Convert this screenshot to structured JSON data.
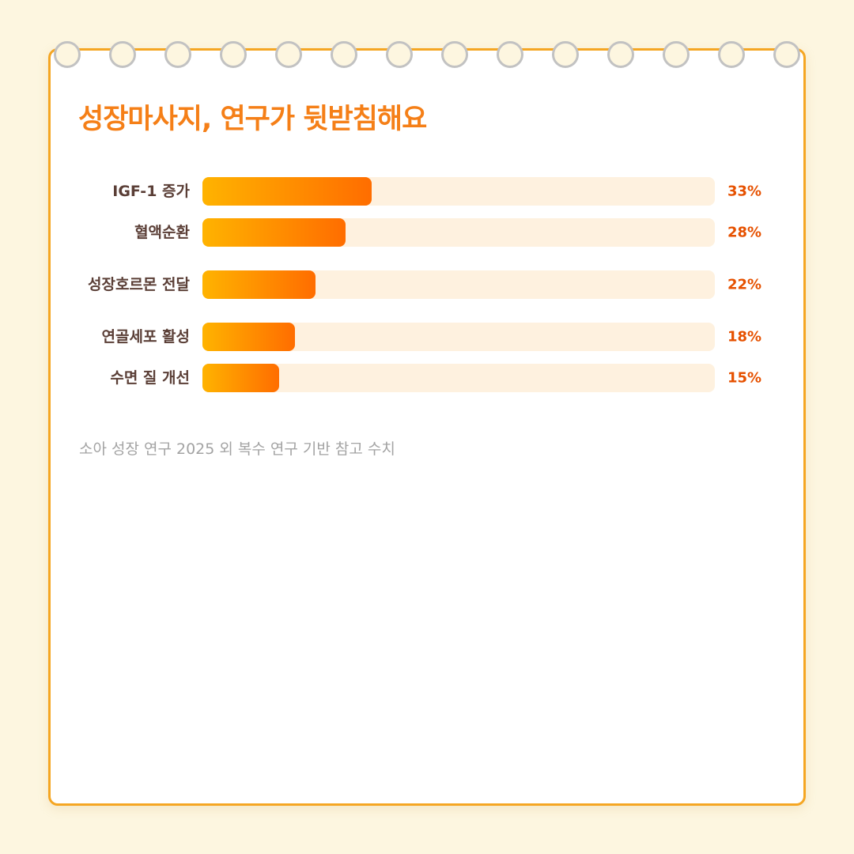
{
  "chart_data": {
    "type": "bar",
    "orientation": "horizontal",
    "title": "성장마사지, 연구가 뒷받침해요",
    "categories": [
      "IGF-1 증가",
      "혈액순환",
      "성장호르몬 전달",
      "연골세포 활성",
      "수면 질 개선"
    ],
    "values": [
      33,
      28,
      22,
      18,
      15
    ],
    "value_labels": [
      "33%",
      "28%",
      "22%",
      "18%",
      "15%"
    ],
    "xlim": [
      0,
      100
    ],
    "grid": false,
    "colors": {
      "bar_start": "#ffb300",
      "bar_end": "#ff6d00",
      "track": "#fef1df",
      "value_text": "#e65100",
      "title": "#f57f17"
    }
  },
  "footnote": "소아 성장 연구 2025 외 복수 연구 기반 참고 수치"
}
